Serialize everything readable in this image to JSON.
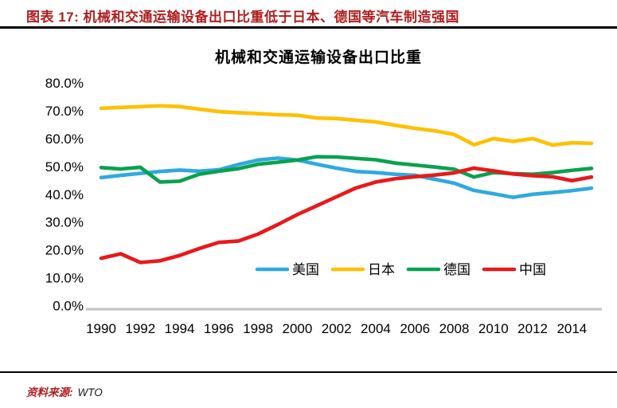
{
  "header": {
    "title": "图表 17:  机械和交通运输设备出口比重低于日本、德国等汽车制造强国"
  },
  "footer": {
    "source_label": "资料来源:",
    "source_value": "WTO"
  },
  "chart_data": {
    "type": "line",
    "title": "机械和交通运输设备出口比重",
    "xlabel": "",
    "ylabel": "",
    "ylim": [
      0,
      80
    ],
    "grid": false,
    "legend_position": "bottom-inside",
    "y_tick_values": [
      0,
      10,
      20,
      30,
      40,
      50,
      60,
      70,
      80
    ],
    "y_tick_labels": [
      "0.0%",
      "10.0%",
      "20.0%",
      "30.0%",
      "40.0%",
      "50.0%",
      "60.0%",
      "70.0%",
      "80.0%"
    ],
    "x_tick_years": [
      1990,
      1992,
      1994,
      1996,
      1998,
      2000,
      2002,
      2004,
      2006,
      2008,
      2010,
      2012,
      2014
    ],
    "x_tick_labels": [
      "1990",
      "1992",
      "1994",
      "1996",
      "1998",
      "2000",
      "2002",
      "2004",
      "2006",
      "2008",
      "2010",
      "2012",
      "2014"
    ],
    "x": [
      1990,
      1991,
      1992,
      1993,
      1994,
      1995,
      1996,
      1997,
      1998,
      1999,
      2000,
      2001,
      2002,
      2003,
      2004,
      2005,
      2006,
      2007,
      2008,
      2009,
      2010,
      2011,
      2012,
      2013,
      2014,
      2015
    ],
    "series": [
      {
        "key": "us",
        "name": "美国",
        "color": "#2Fa9e0",
        "values": [
          46.0,
          46.8,
          47.5,
          48.2,
          48.7,
          48.3,
          48.8,
          50.7,
          52.3,
          53.0,
          52.3,
          50.8,
          49.4,
          48.2,
          47.8,
          47.2,
          46.8,
          45.4,
          44.0,
          41.4,
          40.2,
          38.9,
          40.0,
          40.6,
          41.3,
          42.2
        ]
      },
      {
        "key": "japan",
        "name": "日本",
        "color": "#ffc000",
        "values": [
          70.9,
          71.2,
          71.5,
          71.8,
          71.5,
          70.6,
          69.7,
          69.3,
          69.0,
          68.6,
          68.4,
          67.4,
          67.2,
          66.6,
          66.0,
          64.8,
          63.7,
          62.8,
          61.5,
          57.8,
          60.0,
          59.0,
          60.0,
          57.7,
          58.5,
          58.3
        ]
      },
      {
        "key": "germany",
        "name": "德国",
        "color": "#0aa14f",
        "values": [
          49.6,
          49.1,
          49.7,
          44.4,
          44.7,
          47.2,
          48.3,
          49.2,
          50.8,
          51.5,
          52.3,
          53.5,
          53.4,
          52.9,
          52.4,
          51.2,
          50.5,
          49.8,
          49.0,
          46.2,
          47.8,
          47.4,
          47.2,
          47.8,
          48.6,
          49.3
        ]
      },
      {
        "key": "china",
        "name": "中国",
        "color": "#e8191c",
        "values": [
          17.0,
          18.6,
          15.5,
          16.1,
          18.0,
          20.5,
          22.7,
          23.2,
          25.7,
          29.1,
          32.7,
          35.9,
          39.1,
          42.3,
          44.4,
          45.6,
          46.3,
          46.9,
          47.7,
          49.4,
          48.4,
          47.3,
          46.7,
          46.3,
          44.9,
          46.2
        ]
      }
    ],
    "axis_color": "#c6c6c6"
  }
}
